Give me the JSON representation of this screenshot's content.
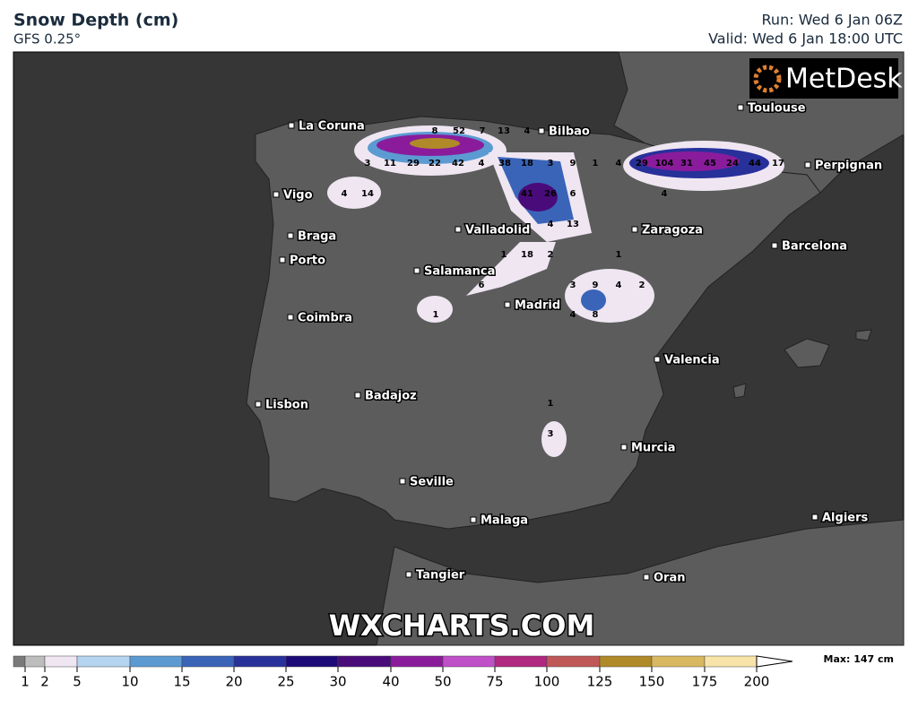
{
  "header": {
    "title": "Snow Depth (cm)",
    "subtitle": "GFS 0.25°",
    "run": "Run: Wed 6 Jan 06Z",
    "valid": "Valid: Wed 6 Jan 18:00 UTC"
  },
  "logo": "MetDesk",
  "watermark": "WXCHARTS.COM",
  "cities": [
    "La Coruna",
    "Bilbao",
    "Toulouse",
    "Perpignan",
    "Vigo",
    "Braga",
    "Porto",
    "Valladolid",
    "Zaragoza",
    "Barcelona",
    "Salamanca",
    "Madrid",
    "Coimbra",
    "Valencia",
    "Badajoz",
    "Lisbon",
    "Murcia",
    "Seville",
    "Malaga",
    "Algiers",
    "Tangier",
    "Oran"
  ],
  "map_labels": [
    8,
    52,
    7,
    13,
    4,
    3,
    11,
    29,
    22,
    42,
    4,
    38,
    18,
    3,
    9,
    1,
    4,
    29,
    104,
    31,
    45,
    24,
    44,
    17,
    4,
    14,
    41,
    26,
    6,
    4,
    4,
    13,
    1,
    18,
    2,
    1,
    6,
    3,
    9,
    4,
    2,
    4,
    8,
    1,
    1,
    3
  ],
  "legend": {
    "ticks": [
      1,
      2,
      5,
      10,
      15,
      20,
      25,
      30,
      40,
      50,
      75,
      100,
      125,
      150,
      175,
      200
    ],
    "colors": [
      "#7a7a7a",
      "#bdbdbd",
      "#efe6f2",
      "#b4d4f0",
      "#5c9ad2",
      "#3a64b8",
      "#28309a",
      "#1c0a78",
      "#4a0b7a",
      "#8a1c9c",
      "#c050c8",
      "#b02880",
      "#c05858",
      "#b08a28",
      "#d8b860",
      "#f8e4a8"
    ],
    "max": "Max: 147 cm"
  }
}
